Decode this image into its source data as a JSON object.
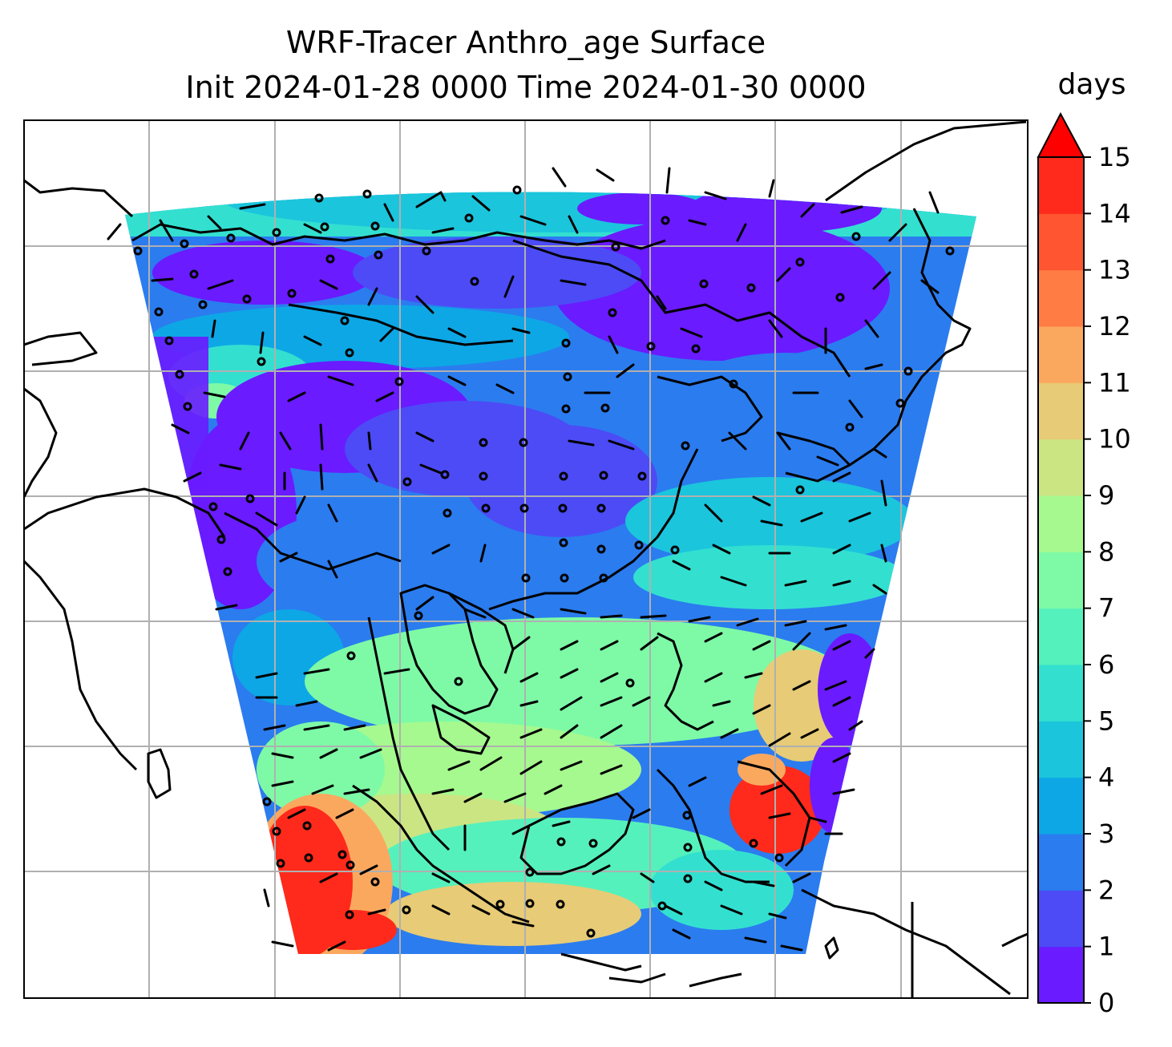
{
  "title": {
    "line1": "WRF-Tracer Anthro_age Surface",
    "line2": "Init 2024-01-28 0000 Time 2024-01-30 0000"
  },
  "colorbar": {
    "units": "days",
    "extend": "max",
    "ticks": [
      "0",
      "1",
      "2",
      "3",
      "4",
      "5",
      "6",
      "7",
      "8",
      "9",
      "10",
      "11",
      "12",
      "13",
      "14",
      "15"
    ],
    "colors": [
      "#6a1bff",
      "#4c4bf6",
      "#2b7cef",
      "#0da7e6",
      "#1bc5dc",
      "#33e0d0",
      "#55f1bc",
      "#7efaa6",
      "#a6f98e",
      "#cbe583",
      "#e7cb76",
      "#fba85f",
      "#ff7c44",
      "#ff5530",
      "#ff2a1b"
    ],
    "extend_color": "#ff0000"
  },
  "chart_data": {
    "type": "heatmap",
    "title": "WRF-Tracer Anthro_age Surface\nInit 2024-01-28 0000 Time 2024-01-30 0000",
    "variable": "Anthro_age",
    "level": "Surface",
    "units": "days",
    "value_range": [
      0,
      15
    ],
    "colormap": "rainbow",
    "grid": true,
    "overlays": [
      "coastlines",
      "country borders",
      "wind barbs"
    ]
  }
}
